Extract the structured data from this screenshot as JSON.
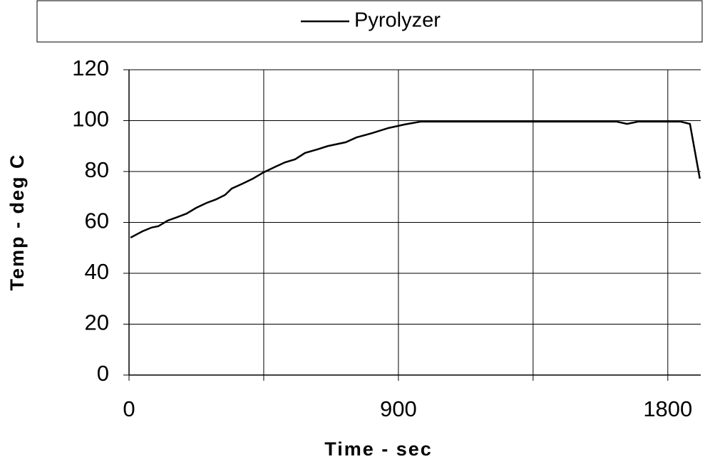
{
  "chart_data": {
    "type": "line",
    "xlabel": "Time - sec",
    "ylabel": "Temp - deg C",
    "legend": "top",
    "x": [
      5,
      45,
      76,
      98,
      129,
      160,
      193,
      224,
      260,
      290,
      321,
      343,
      379,
      414,
      450,
      486,
      521,
      555,
      588,
      629,
      664,
      724,
      760,
      812,
      867,
      921,
      974,
      1629,
      1664,
      1700,
      1843,
      1874,
      1907
    ],
    "series": [
      {
        "name": "Pyrolyzer",
        "color": "#000000",
        "values": [
          54,
          56.5,
          58,
          58.5,
          60.7,
          62,
          63.5,
          65.7,
          67.7,
          69,
          70.8,
          73.3,
          75.2,
          77.2,
          79.7,
          81.7,
          83.6,
          84.8,
          87.3,
          88.7,
          90,
          91.5,
          93.4,
          95.1,
          97.1,
          98.5,
          99.6,
          99.6,
          98.7,
          99.6,
          99.6,
          98.7,
          77.2
        ]
      }
    ],
    "xlim": [
      0,
      1910
    ],
    "ylim": [
      0,
      120
    ],
    "xticks": [
      0,
      900,
      1800
    ],
    "xminorticks": [
      450,
      1350
    ],
    "yticks": [
      0,
      20,
      40,
      60,
      80,
      100,
      120
    ],
    "grid": true
  }
}
